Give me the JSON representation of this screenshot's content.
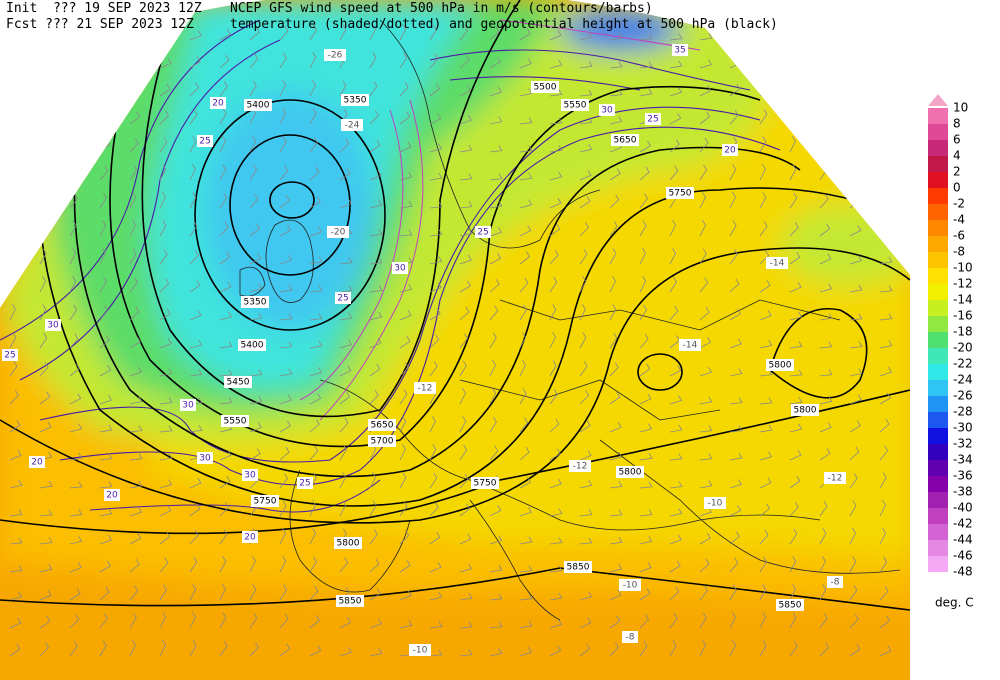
{
  "header": {
    "init": "Init  ??? 19 SEP 2023 12Z",
    "fcst": "Fcst ??? 21 SEP 2023 12Z",
    "line1": "NCEP GFS wind speed at 500 hPa in m/s (contours/barbs)",
    "line2": "temperature (shaded/dotted) and geopotential height at 500 hPa (black)"
  },
  "colorbar": {
    "unit": "deg. C",
    "entries": [
      {
        "label": "10",
        "color": "#f4a6c8"
      },
      {
        "label": "8",
        "color": "#f070b0"
      },
      {
        "label": "6",
        "color": "#e04898"
      },
      {
        "label": "4",
        "color": "#c82878"
      },
      {
        "label": "2",
        "color": "#c01848"
      },
      {
        "label": "0",
        "color": "#e01020"
      },
      {
        "label": "-2",
        "color": "#ff3a00"
      },
      {
        "label": "-4",
        "color": "#ff6400"
      },
      {
        "label": "-6",
        "color": "#ff8800"
      },
      {
        "label": "-8",
        "color": "#ffa800"
      },
      {
        "label": "-10",
        "color": "#ffc400"
      },
      {
        "label": "-12",
        "color": "#ffe000"
      },
      {
        "label": "-14",
        "color": "#f0f000"
      },
      {
        "label": "-16",
        "color": "#c8f020"
      },
      {
        "label": "-18",
        "color": "#90e840"
      },
      {
        "label": "-20",
        "color": "#50e070"
      },
      {
        "label": "-22",
        "color": "#40e8b8"
      },
      {
        "label": "-24",
        "color": "#30e8e8"
      },
      {
        "label": "-26",
        "color": "#30c4f4"
      },
      {
        "label": "-28",
        "color": "#2094f4"
      },
      {
        "label": "-30",
        "color": "#1c58f0"
      },
      {
        "label": "-32",
        "color": "#1010e0"
      },
      {
        "label": "-34",
        "color": "#3400c0"
      },
      {
        "label": "-36",
        "color": "#6000b0"
      },
      {
        "label": "-38",
        "color": "#8400a8"
      },
      {
        "label": "-40",
        "color": "#a020b0"
      },
      {
        "label": "-42",
        "color": "#c040c0"
      },
      {
        "label": "-44",
        "color": "#d464d4"
      },
      {
        "label": "-46",
        "color": "#e488e4"
      },
      {
        "label": "-48",
        "color": "#f4a8f4"
      }
    ]
  },
  "contour_labels": [
    "5350",
    "5400",
    "5500",
    "5550",
    "5650",
    "5750",
    "5800",
    "5800",
    "5800",
    "5750",
    "5800",
    "5850",
    "5850",
    "5850",
    "5350",
    "5400",
    "5450",
    "5550",
    "5650",
    "5700",
    "5750",
    "-26",
    "-24",
    "-20",
    "-14",
    "-14",
    "-12",
    "-12",
    "-12",
    "-10",
    "-10",
    "-8",
    "-8",
    "-10",
    "20",
    "25",
    "20",
    "20",
    "30",
    "25",
    "30",
    "30",
    "30",
    "25",
    "20",
    "25",
    "30",
    "25",
    "30",
    "25",
    "20",
    "35"
  ]
}
